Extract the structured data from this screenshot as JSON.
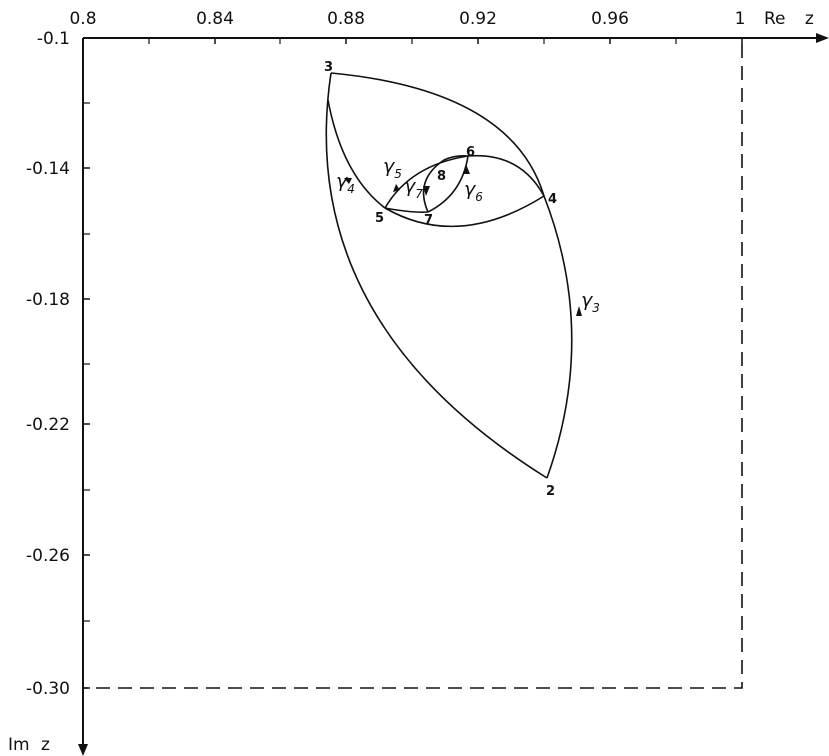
{
  "axes": {
    "x_name": "Re z",
    "y_name": "Im z",
    "x_ticks": [
      "0.8",
      "0.84",
      "0.88",
      "0.92",
      "0.96",
      "1"
    ],
    "y_ticks": [
      "-0.1",
      "-0.14",
      "-0.18",
      "-0.22",
      "-0.26",
      "-0.30"
    ],
    "x_range": [
      0.8,
      1.0
    ],
    "y_range": [
      -0.1,
      -0.3
    ]
  },
  "points": [
    {
      "label": "2",
      "re": 0.94,
      "im": -0.236
    },
    {
      "label": "3",
      "re": 0.875,
      "im": -0.11
    },
    {
      "label": "4",
      "re": 0.94,
      "im": -0.15
    },
    {
      "label": "5",
      "re": 0.89,
      "im": -0.153
    },
    {
      "label": "6",
      "re": 0.916,
      "im": -0.137
    },
    {
      "label": "7",
      "re": 0.904,
      "im": -0.155
    },
    {
      "label": "8",
      "re": 0.905,
      "im": -0.143
    }
  ],
  "contours": [
    {
      "name": "γ",
      "sub": "3"
    },
    {
      "name": "γ",
      "sub": "4"
    },
    {
      "name": "γ",
      "sub": "5"
    },
    {
      "name": "γ",
      "sub": "6"
    },
    {
      "name": "γ",
      "sub": "7"
    }
  ]
}
